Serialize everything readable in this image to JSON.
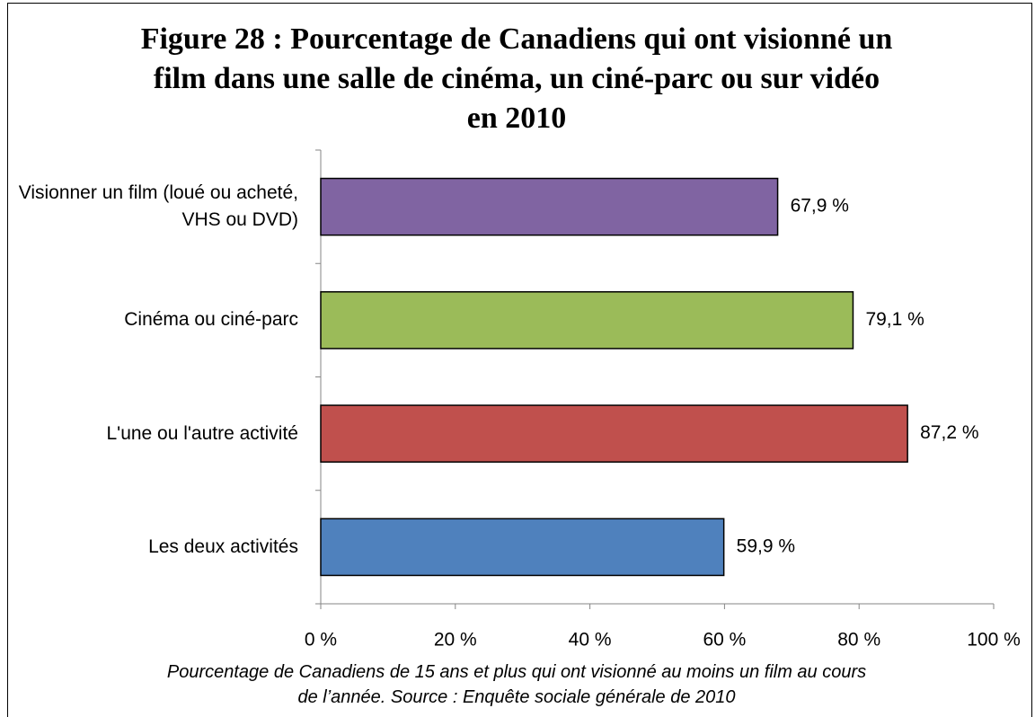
{
  "chart_data": {
    "type": "hbar",
    "title": "Figure 28 : Pourcentage de Canadiens qui ont visionné un film dans une salle de cinéma, un ciné-parc ou sur vidéo en 2010",
    "categories": [
      "Visionner un film (loué ou acheté, VHS ou DVD)",
      "Cinéma ou ciné-parc",
      "L'une ou l'autre activité",
      "Les deux activités"
    ],
    "values": [
      67.9,
      79.1,
      87.2,
      59.9
    ],
    "value_labels": [
      "67,9 %",
      "79,1 %",
      "87,2 %",
      "59,9 %"
    ],
    "colors": [
      "#8064a2",
      "#9bbb59",
      "#c0504d",
      "#4f81bd"
    ],
    "xlim": [
      0,
      100
    ],
    "xticks": [
      {
        "value": 0,
        "label": "0 %"
      },
      {
        "value": 20,
        "label": "20 %"
      },
      {
        "value": 40,
        "label": "40 %"
      },
      {
        "value": 60,
        "label": "60 %"
      },
      {
        "value": 80,
        "label": "80 %"
      },
      {
        "value": 100,
        "label": "100 %"
      }
    ],
    "note": "Pourcentage de Canadiens de 15 ans et plus qui ont visionné au moins un film au cours de l’année. Source : Enquête sociale générale de 2010"
  }
}
